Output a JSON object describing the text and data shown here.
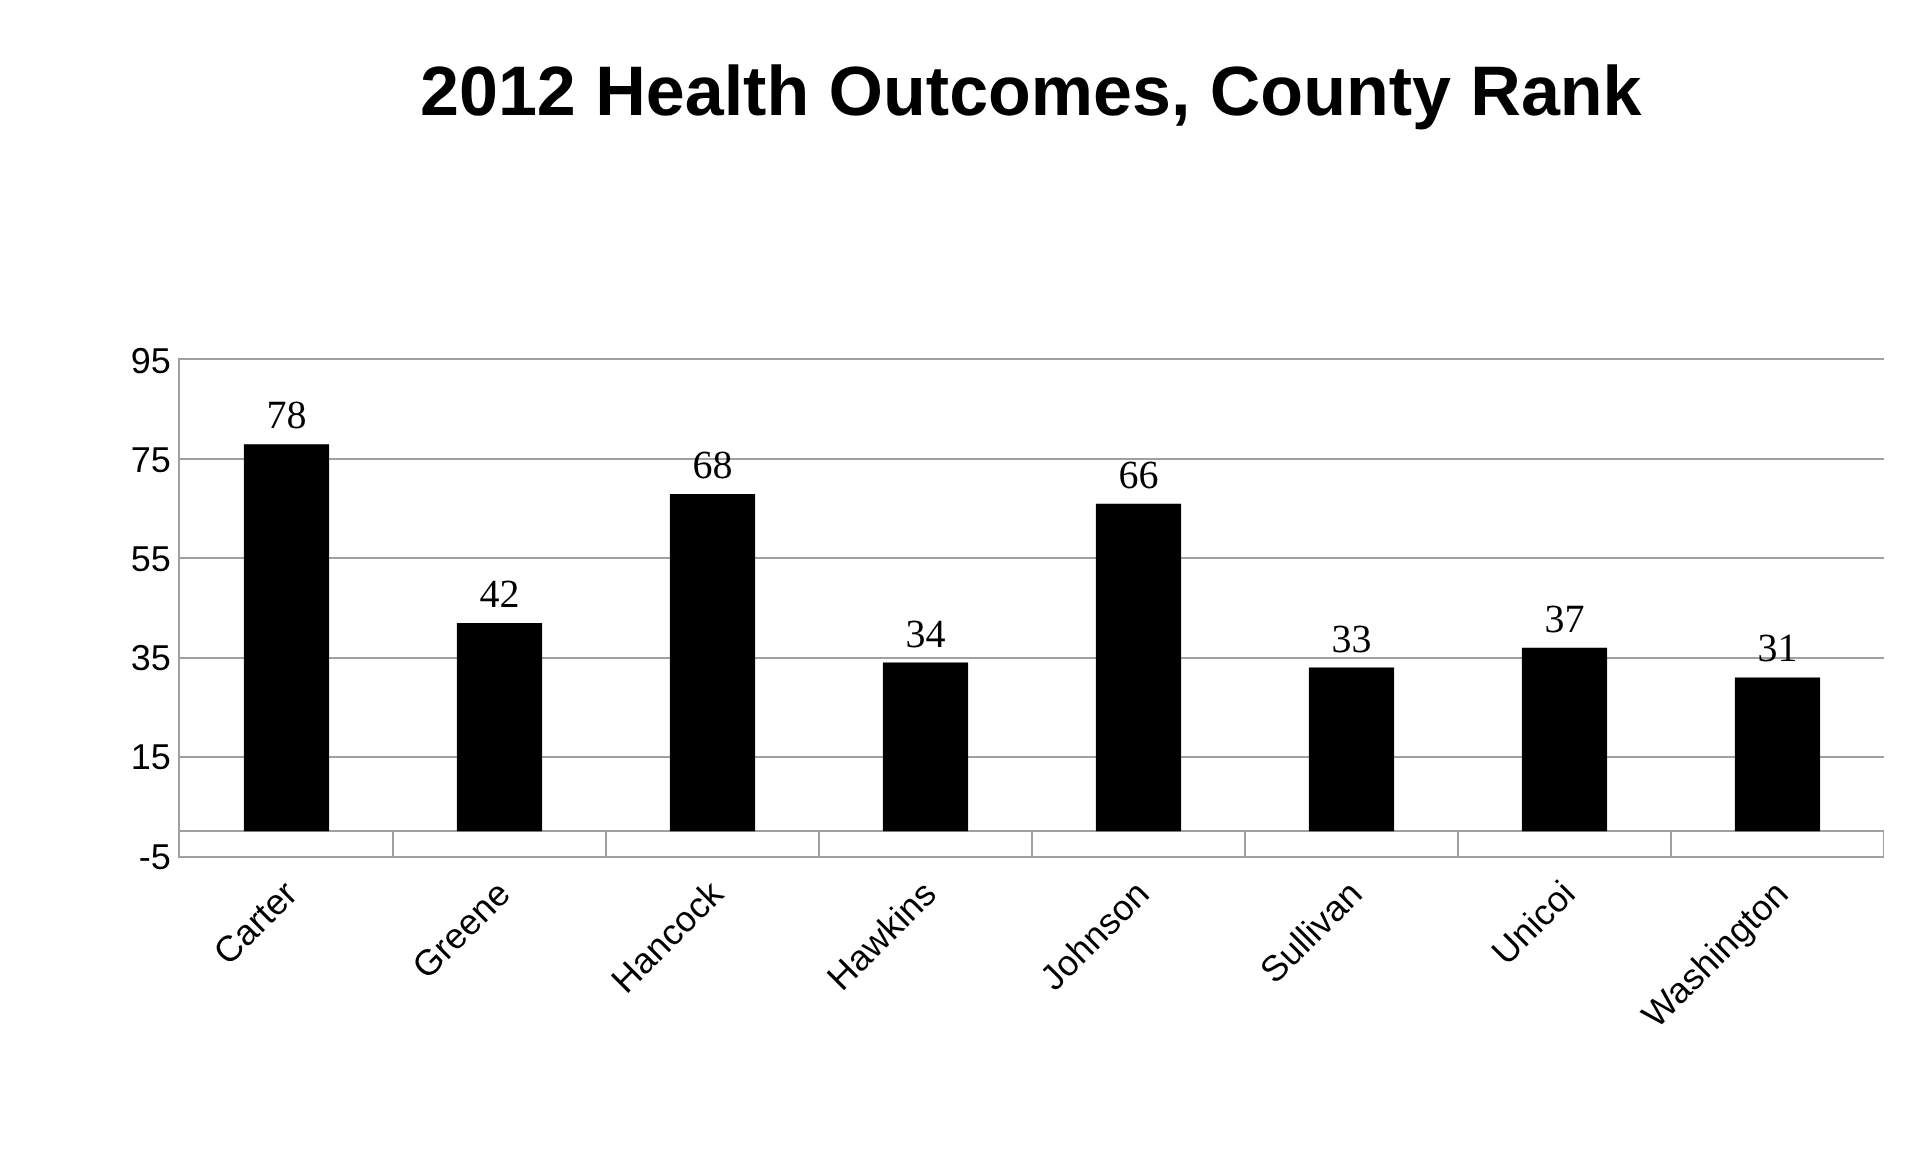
{
  "chart_data": {
    "type": "bar",
    "title": "2012 Health Outcomes, County Rank",
    "categories": [
      "Carter",
      "Greene",
      "Hancock",
      "Hawkins",
      "Johnson",
      "Sullivan",
      "Unicoi",
      "Washington"
    ],
    "values": [
      78,
      42,
      68,
      34,
      66,
      33,
      37,
      31
    ],
    "color": "#000000",
    "ylim": [
      -5,
      95
    ],
    "yticks": [
      -5,
      15,
      35,
      55,
      75,
      95
    ],
    "grid": "y",
    "data_labels": true
  }
}
